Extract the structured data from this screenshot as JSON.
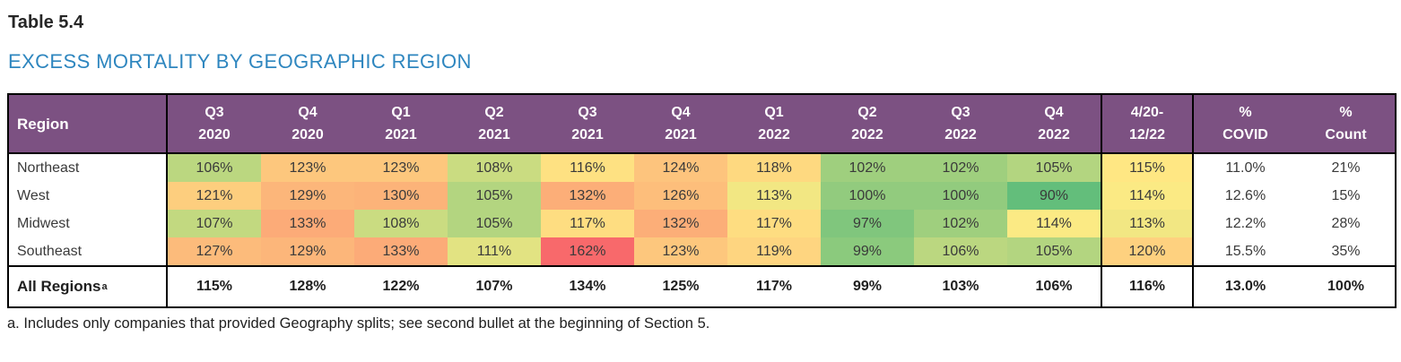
{
  "title": "Table 5.4",
  "subtitle": "EXCESS MORTALITY BY GEOGRAPHIC REGION",
  "footnote": "a. Includes only companies that provided Geography splits; see second bullet at the beginning of Section 5.",
  "table": {
    "header": {
      "region_label": "Region",
      "quarter_columns": [
        [
          "Q3",
          "2020"
        ],
        [
          "Q4",
          "2020"
        ],
        [
          "Q1",
          "2021"
        ],
        [
          "Q2",
          "2021"
        ],
        [
          "Q3",
          "2021"
        ],
        [
          "Q4",
          "2021"
        ],
        [
          "Q1",
          "2022"
        ],
        [
          "Q2",
          "2022"
        ],
        [
          "Q3",
          "2022"
        ],
        [
          "Q4",
          "2022"
        ]
      ],
      "period_column": [
        "4/20-",
        "12/22"
      ],
      "covid_column": [
        "%",
        "COVID"
      ],
      "count_column": [
        "%",
        "Count"
      ]
    },
    "rows": [
      {
        "region": "Northeast",
        "values": [
          "106%",
          "123%",
          "123%",
          "108%",
          "116%",
          "124%",
          "118%",
          "102%",
          "102%",
          "105%",
          "115%"
        ],
        "covid": "11.0%",
        "count": "21%"
      },
      {
        "region": "West",
        "values": [
          "121%",
          "129%",
          "130%",
          "105%",
          "132%",
          "126%",
          "113%",
          "100%",
          "100%",
          "90%",
          "114%"
        ],
        "covid": "12.6%",
        "count": "15%"
      },
      {
        "region": "Midwest",
        "values": [
          "107%",
          "133%",
          "108%",
          "105%",
          "117%",
          "132%",
          "117%",
          "97%",
          "102%",
          "114%",
          "113%"
        ],
        "covid": "12.2%",
        "count": "28%"
      },
      {
        "region": "Southeast",
        "values": [
          "127%",
          "129%",
          "133%",
          "111%",
          "162%",
          "123%",
          "119%",
          "99%",
          "106%",
          "105%",
          "120%"
        ],
        "covid": "15.5%",
        "count": "35%"
      }
    ],
    "total_row": {
      "region": "All Regions",
      "footnote_marker": "a",
      "values": [
        "115%",
        "128%",
        "122%",
        "107%",
        "134%",
        "125%",
        "117%",
        "99%",
        "103%",
        "106%",
        "116%"
      ],
      "covid": "13.0%",
      "count": "100%"
    },
    "colors": {
      "header_bg": "#7C5182",
      "header_text": "#FFFFFF",
      "title_color": "#262626",
      "subtitle_color": "#2E86BF",
      "body_text": "#3A3A3A",
      "total_text": "#1F1F1F",
      "border_color": "#000000",
      "heat_scale": {
        "min_value": 90,
        "min_color": "#63BE7B",
        "mid_value": 114.5,
        "mid_color": "#FFEB84",
        "max_value": 162,
        "max_color": "#F8696B"
      }
    }
  }
}
